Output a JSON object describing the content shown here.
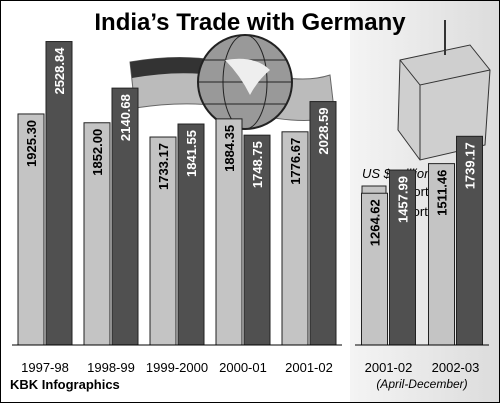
{
  "title": "India’s Trade with Germany",
  "source": "KBK Infographics",
  "chart_data": [
    {
      "type": "bar",
      "unit_label": "US $ million",
      "categories": [
        "1997-98",
        "1998-99",
        "1999-2000",
        "2000-01",
        "2001-02"
      ],
      "series": [
        {
          "name": "Exports",
          "color": "#c4c4c4",
          "values": [
            1925.3,
            1852,
            1733.17,
            1884.35,
            1776.67
          ],
          "value_labels": [
            "1925.30",
            "1852.00",
            "1733.17",
            "1884.35",
            "1776.67"
          ]
        },
        {
          "name": "Imports",
          "color": "#505050",
          "values": [
            2528.84,
            2140.68,
            1841.55,
            1748.75,
            2028.59
          ],
          "value_labels": [
            "2528.84",
            "2140.68",
            "1841.55",
            "1748.75",
            "2028.59"
          ]
        }
      ]
    },
    {
      "type": "bar",
      "subtitle": "(April-December)",
      "categories": [
        "2001-02",
        "2002-03"
      ],
      "series": [
        {
          "color": "#c4c4c4",
          "values": [
            1264.62,
            1511.46
          ],
          "value_labels": [
            "1264.62",
            "1511.46"
          ]
        },
        {
          "color": "#505050",
          "values": [
            1457.99,
            1739.17
          ],
          "value_labels": [
            "1457.99",
            "1739.17"
          ]
        }
      ]
    }
  ]
}
